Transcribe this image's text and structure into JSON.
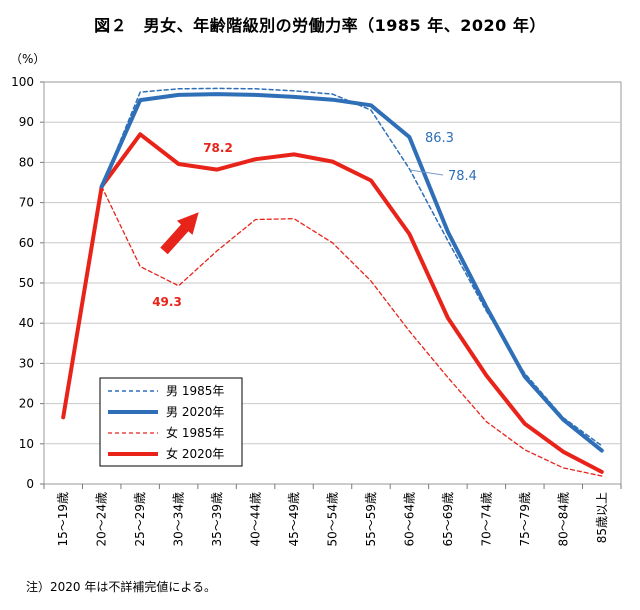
{
  "title": "図２　男女、年齢階級別の労働力率（1985 年、2020 年）",
  "footnote": "注）2020 年は不詳補完値による。",
  "chart_data": {
    "type": "line",
    "title": "図２　男女、年齢階級別の労働力率（1985 年、2020 年）",
    "ylabel": "（%）",
    "xlabel": "",
    "ylim": [
      0,
      100
    ],
    "yticks": [
      0,
      10,
      20,
      30,
      40,
      50,
      60,
      70,
      80,
      90,
      100
    ],
    "grid": true,
    "legend_position": "bottom-left",
    "categories": [
      "15～19歳",
      "20～24歳",
      "25～29歳",
      "30～34歳",
      "35～39歳",
      "40～44歳",
      "45～49歳",
      "50～54歳",
      "55～59歳",
      "60～64歳",
      "65～69歳",
      "70～74歳",
      "75～79歳",
      "80～84歳",
      "85歳以上"
    ],
    "series": [
      {
        "name": "男 1985年",
        "color": "#2e6fb7",
        "style": "dashed",
        "width": 1.5,
        "values": [
          null,
          74,
          97.5,
          98.3,
          98.4,
          98.3,
          97.8,
          97.0,
          93.0,
          78.4,
          60.5,
          43.0,
          27.5,
          16.5,
          9.5
        ]
      },
      {
        "name": "男 2020年",
        "color": "#2e6fb7",
        "style": "solid",
        "width": 4,
        "values": [
          null,
          74,
          95.5,
          96.8,
          97.0,
          96.8,
          96.3,
          95.6,
          94.2,
          86.3,
          62.7,
          44.0,
          26.7,
          16.0,
          8.3
        ]
      },
      {
        "name": "女 1985年",
        "color": "#e8231a",
        "style": "dashed",
        "width": 1.3,
        "values": [
          null,
          74,
          54.1,
          49.3,
          58.0,
          65.8,
          66.0,
          60.0,
          50.5,
          38.0,
          26.5,
          15.5,
          8.5,
          4.0,
          2.0
        ]
      },
      {
        "name": "女 2020年",
        "color": "#e8231a",
        "style": "solid",
        "width": 4,
        "values": [
          16.6,
          74,
          87.0,
          79.6,
          78.2,
          80.8,
          82.0,
          80.2,
          75.5,
          62.2,
          41.3,
          27.0,
          15.0,
          8.0,
          3.0
        ]
      }
    ],
    "annotations": [
      {
        "text": "78.2",
        "color": "#e8231a",
        "bold": true
      },
      {
        "text": "49.3",
        "color": "#e8231a",
        "bold": true
      },
      {
        "text": "86.3",
        "color": "#2e6fb7",
        "bold": false
      },
      {
        "text": "78.4",
        "color": "#2e6fb7",
        "bold": false
      }
    ]
  }
}
